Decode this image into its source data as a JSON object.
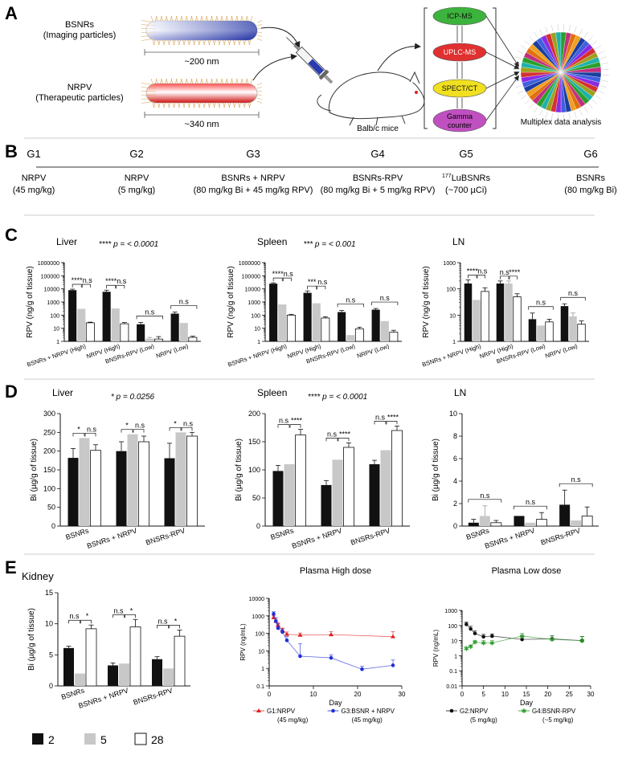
{
  "panel_letters": [
    "A",
    "B",
    "C",
    "D",
    "E"
  ],
  "colors": {
    "black": "#111111",
    "grey": "#c8c8c8",
    "white": "#ffffff",
    "blue": "#1f2fd8",
    "red": "#e02020",
    "green": "#2a9a2a",
    "pie": [
      "#1b3fa0",
      "#d63030",
      "#2aa02a",
      "#f0a020",
      "#8a2be2",
      "#20b2aa",
      "#e07010",
      "#4060e0",
      "#a0a020",
      "#c03080"
    ]
  },
  "panelA": {
    "bsnr_label": "BSNRs",
    "bsnr_sub": "(Imaging particles)",
    "bsnr_size": "~200 nm",
    "nrpv_label": "NRPV",
    "nrpv_sub": "(Therapeutic particles)",
    "nrpv_size": "~340 nm",
    "mouse_label": "Balb/c mice",
    "methods": [
      "ICP-MS",
      "UPLC-MS",
      "SPECT/CT",
      "Gamma counter"
    ],
    "method_colors": [
      "#3cb33c",
      "#e03030",
      "#f0e020",
      "#c050c0"
    ],
    "analysis_label": "Multiplex data analysis"
  },
  "panelB": {
    "groups": [
      {
        "id": "G1",
        "line1": "NRPV",
        "line2": "(45 mg/kg)"
      },
      {
        "id": "G2",
        "line1": "NRPV",
        "line2": "(5 mg/kg)"
      },
      {
        "id": "G3",
        "line1": "BSNRs + NRPV",
        "line2": "(80 mg/kg Bi + 45 mg/kg RPV)"
      },
      {
        "id": "G4",
        "line1": "BSNRs-RPV",
        "line2": "(80 mg/kg Bi + 5 mg/kg RPV)"
      },
      {
        "id": "G5",
        "line1_sup": "177",
        "line1": "LuBSNRs",
        "line2": "(~700 µCi)"
      },
      {
        "id": "G6",
        "line1": "BSNRs",
        "line2": "(80 mg/kg Bi)"
      }
    ]
  },
  "chart_data": [
    {
      "id": "C1",
      "type": "bar",
      "title": "Liver",
      "ylabel": "RPV (ng/g of tissue)",
      "yscale": "log",
      "ylim": [
        1,
        1000000
      ],
      "yticks": [
        "1",
        "10",
        "100",
        "1000",
        "10000",
        "100000",
        "1000000"
      ],
      "stat": "**** p = < 0.0001",
      "categories": [
        "BSNRs + NRPV (High)",
        "NRPV (High)",
        "BNSRs-RPV (Low)",
        "NRPV (Low)"
      ],
      "series": [
        {
          "values": [
            8000,
            6000,
            20,
            130
          ],
          "err": [
            1500,
            2000,
            8,
            40
          ]
        },
        {
          "values": [
            300,
            320,
            1.6,
            25
          ],
          "err": [
            0,
            0,
            0.4,
            0
          ]
        },
        {
          "values": [
            26,
            22,
            1.5,
            2
          ],
          "err": [
            3,
            5,
            0.8,
            0.5
          ]
        }
      ],
      "sig": [
        {
          "g": 0,
          "label": "****"
        },
        {
          "g": 0,
          "label": "n.s"
        },
        {
          "g": 1,
          "label": "****"
        },
        {
          "g": 1,
          "label": "n.s"
        },
        {
          "g": 2,
          "label": "n.s"
        },
        {
          "g": 3,
          "label": "n.s"
        }
      ]
    },
    {
      "id": "C2",
      "type": "bar",
      "title": "Spleen",
      "ylabel": "RPV (ng/g of tissue)",
      "yscale": "log",
      "ylim": [
        1,
        1000000
      ],
      "yticks": [
        "1",
        "10",
        "100",
        "1000",
        "10000",
        "100000",
        "1000000"
      ],
      "stat": "*** p = < 0.001",
      "categories": [
        "BSNRs + NRPV (High)",
        "NRPV (High)",
        "BNSRs-RPV (Low)",
        "NRPV (Low)"
      ],
      "series": [
        {
          "values": [
            25000,
            5000,
            170,
            260
          ],
          "err": [
            4000,
            2000,
            60,
            60
          ]
        },
        {
          "values": [
            650,
            800,
            3,
            35
          ],
          "err": [
            0,
            0,
            0,
            0
          ]
        },
        {
          "values": [
            100,
            60,
            9,
            5
          ],
          "err": [
            15,
            15,
            3,
            2
          ]
        }
      ],
      "sig": [
        {
          "g": 0,
          "label": "****"
        },
        {
          "g": 0,
          "label": "n.s"
        },
        {
          "g": 1,
          "label": "***"
        },
        {
          "g": 1,
          "label": "n.s"
        },
        {
          "g": 2,
          "label": "n.s"
        },
        {
          "g": 3,
          "label": "n.s"
        }
      ]
    },
    {
      "id": "C3",
      "type": "bar",
      "title": "LN",
      "ylabel": "RPV (ng/g of tissue)",
      "yscale": "log",
      "ylim": [
        1,
        1000
      ],
      "yticks": [
        "1",
        "10",
        "100",
        "1000"
      ],
      "stat": "",
      "categories": [
        "BSNRs + NRPV (High)",
        "NRPV (High)",
        "BNSRs-RPV (Low)",
        "NRPV (Low)"
      ],
      "series": [
        {
          "values": [
            160,
            160,
            7,
            22
          ],
          "err": [
            60,
            40,
            5,
            5
          ]
        },
        {
          "values": [
            38,
            160,
            4,
            9
          ],
          "err": [
            0,
            40,
            0,
            3
          ]
        },
        {
          "values": [
            80,
            50,
            5.5,
            4.5
          ],
          "err": [
            30,
            15,
            1.5,
            1.5
          ]
        }
      ],
      "sig": [
        {
          "g": 0,
          "label": "****"
        },
        {
          "g": 0,
          "label": "n.s"
        },
        {
          "g": 1,
          "label": "n.s"
        },
        {
          "g": 1,
          "label": "****"
        },
        {
          "g": 2,
          "label": "n.s"
        },
        {
          "g": 3,
          "label": "n.s"
        }
      ]
    },
    {
      "id": "D1",
      "type": "bar",
      "title": "Liver",
      "ylabel": "Bi (µg/g of tissue)",
      "yscale": "linear",
      "ylim": [
        0,
        300
      ],
      "yticks": [
        "0",
        "50",
        "100",
        "150",
        "200",
        "250",
        "300"
      ],
      "stat": "* p = 0.0256",
      "categories": [
        "BSNRs",
        "BSNRs + NRPV",
        "BNSRs-RPV"
      ],
      "series": [
        {
          "values": [
            182,
            200,
            181
          ],
          "err": [
            25,
            25,
            40
          ]
        },
        {
          "values": [
            235,
            245,
            250
          ],
          "err": [
            0,
            0,
            0
          ]
        },
        {
          "values": [
            202,
            225,
            240
          ],
          "err": [
            15,
            15,
            10
          ]
        }
      ],
      "sig": [
        {
          "g": 0,
          "label": "*"
        },
        {
          "g": 0,
          "label": "n.s"
        },
        {
          "g": 1,
          "label": "*"
        },
        {
          "g": 1,
          "label": "n.s"
        },
        {
          "g": 2,
          "label": "*"
        },
        {
          "g": 2,
          "label": "n.s"
        }
      ]
    },
    {
      "id": "D2",
      "type": "bar",
      "title": "Spleen",
      "ylabel": "Bi (µg/g of tissue)",
      "yscale": "linear",
      "ylim": [
        0,
        200
      ],
      "yticks": [
        "0",
        "50",
        "100",
        "150",
        "200"
      ],
      "stat": "**** p = < 0.0001",
      "categories": [
        "BSNRs",
        "BSNRs + NRPV",
        "BNSRs-RPV"
      ],
      "series": [
        {
          "values": [
            98,
            73,
            110
          ],
          "err": [
            10,
            8,
            7
          ]
        },
        {
          "values": [
            110,
            118,
            135
          ],
          "err": [
            0,
            0,
            0
          ]
        },
        {
          "values": [
            162,
            140,
            170
          ],
          "err": [
            10,
            8,
            8
          ]
        }
      ],
      "sig": [
        {
          "g": 0,
          "label": "n.s"
        },
        {
          "g": 0,
          "label": "****"
        },
        {
          "g": 1,
          "label": "n.s"
        },
        {
          "g": 1,
          "label": "****"
        },
        {
          "g": 2,
          "label": "n.s"
        },
        {
          "g": 2,
          "label": "****"
        }
      ]
    },
    {
      "id": "D3",
      "type": "bar",
      "title": "LN",
      "ylabel": "Bi (µg/g of tissue)",
      "yscale": "linear",
      "ylim": [
        0,
        10
      ],
      "yticks": [
        "0",
        "2",
        "4",
        "6",
        "8",
        "10"
      ],
      "stat": "",
      "categories": [
        "BSNRs",
        "BSNRs + NRPV",
        "BNSRs-RPV"
      ],
      "series": [
        {
          "values": [
            0.3,
            0.9,
            1.9
          ],
          "err": [
            0.3,
            0,
            1.3
          ]
        },
        {
          "values": [
            0.9,
            0.3,
            0.5
          ],
          "err": [
            0.9,
            0,
            0
          ]
        },
        {
          "values": [
            0.3,
            0.6,
            0.9
          ],
          "err": [
            0.2,
            0.6,
            0.8
          ]
        }
      ],
      "sig": [
        {
          "g": 0,
          "label": "n.s"
        },
        {
          "g": 1,
          "label": "n.s"
        },
        {
          "g": 2,
          "label": "n.s"
        }
      ]
    },
    {
      "id": "E1",
      "type": "bar",
      "title": "Kidney",
      "ylabel": "Bi (µg/g of tissue)",
      "yscale": "linear",
      "ylim": [
        0,
        15
      ],
      "yticks": [
        "0",
        "5",
        "10",
        "15"
      ],
      "stat": "",
      "categories": [
        "BSNRs",
        "BSNRs + NRPV",
        "BNSRs-RPV"
      ],
      "series": [
        {
          "name": "2",
          "values": [
            6.1,
            3.3,
            4.3
          ],
          "err": [
            0.3,
            0.4,
            0.4
          ]
        },
        {
          "name": "5",
          "values": [
            2.0,
            3.6,
            2.8
          ],
          "err": [
            0,
            0,
            0
          ]
        },
        {
          "name": "28",
          "values": [
            9.2,
            9.5,
            8.0
          ],
          "err": [
            0.6,
            1.2,
            1.0
          ]
        }
      ],
      "sig": [
        {
          "g": 0,
          "label": "n.s"
        },
        {
          "g": 0,
          "label": "*"
        },
        {
          "g": 1,
          "label": "n.s"
        },
        {
          "g": 1,
          "label": "*"
        },
        {
          "g": 2,
          "label": "n.s"
        },
        {
          "g": 2,
          "label": "*"
        }
      ]
    },
    {
      "id": "E2",
      "type": "line",
      "title": "Plasma High dose",
      "xlabel": "Day",
      "ylabel": "RPV (ng/mL)",
      "yscale": "log",
      "ylim": [
        0.1,
        10000
      ],
      "xlim": [
        0,
        30
      ],
      "xticks": [
        "0",
        "10",
        "20",
        "30"
      ],
      "yticks": [
        "0.1",
        "1",
        "10",
        "100",
        "1000",
        "10000"
      ],
      "series": [
        {
          "name": "G1:NRPV",
          "sub": "(45 mg/kg)",
          "color": "#e02020",
          "marker": "triangle",
          "x": [
            1,
            1.5,
            2,
            3,
            4,
            7,
            14,
            28
          ],
          "y": [
            800,
            500,
            300,
            150,
            90,
            80,
            85,
            65
          ],
          "err": [
            200,
            150,
            100,
            50,
            30,
            25,
            40,
            60
          ]
        },
        {
          "name": "G3:BSNR + NRPV",
          "sub": "(45 mg/kg)",
          "color": "#1f2fd8",
          "marker": "circle",
          "x": [
            1,
            1.5,
            2,
            3,
            4,
            7,
            14,
            21,
            28
          ],
          "y": [
            1300,
            500,
            200,
            120,
            40,
            5,
            4,
            0.9,
            1.5
          ],
          "err": [
            400,
            300,
            150,
            60,
            25,
            20,
            2,
            0.4,
            1.5
          ]
        }
      ]
    },
    {
      "id": "E3",
      "type": "line",
      "title": "Plasma Low dose",
      "xlabel": "Day",
      "ylabel": "RPV (ng/mL)",
      "yscale": "log",
      "ylim": [
        0.01,
        1000
      ],
      "xlim": [
        0,
        30
      ],
      "xticks": [
        "0",
        "5",
        "10",
        "15",
        "20",
        "25",
        "30"
      ],
      "yticks": [
        "0.01",
        "0.1",
        "1",
        "10",
        "100",
        "1000"
      ],
      "series": [
        {
          "name": "G2:NRPV",
          "sub": "(5 mg/kg)",
          "color": "#111111",
          "marker": "circle",
          "x": [
            1,
            2,
            3,
            5,
            7,
            14,
            21,
            28
          ],
          "y": [
            120,
            60,
            30,
            18,
            20,
            12,
            13,
            10
          ],
          "err": [
            50,
            30,
            15,
            8,
            8,
            8,
            8,
            8
          ]
        },
        {
          "name": "G4:BSNR-RPV",
          "sub": "(~5 mg/kg)",
          "color": "#2a9a2a",
          "marker": "star",
          "x": [
            1,
            2,
            3,
            5,
            7,
            14,
            21,
            28
          ],
          "y": [
            3,
            4,
            8,
            7,
            7,
            20,
            12,
            10
          ],
          "err": [
            1,
            1,
            2,
            3,
            3,
            10,
            8,
            9
          ]
        }
      ]
    }
  ]
}
